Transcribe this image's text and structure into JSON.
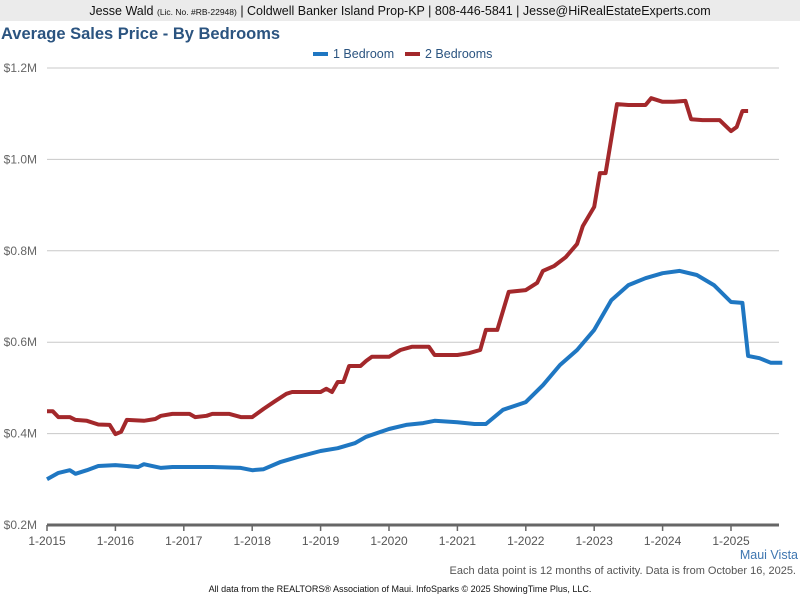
{
  "header": {
    "agent": "Jesse Wald",
    "license": "(Lic. No. #RB-22948)",
    "rest": "| Coldwell Banker Island Prop-KP | 808-446-5841 | Jesse@HiRealEstateExperts.com"
  },
  "region": "Maui Vista",
  "note": "Each data point is 12 months of activity. Data is from October 16, 2025.",
  "footer": "All data from the REALTORS® Association of Maui. InfoSparks © 2025 ShowingTime Plus, LLC.",
  "chart_data": {
    "type": "line",
    "title": "Average Sales Price - By Bedrooms",
    "legend_placement": "top-center",
    "grid": "horizontal",
    "ylim": [
      0.2,
      1.2
    ],
    "yticks": [
      "$0.2M",
      "$0.4M",
      "$0.6M",
      "$0.8M",
      "$1.0M",
      "$1.2M"
    ],
    "ytick_values": [
      0.2,
      0.4,
      0.6,
      0.8,
      1.0,
      1.2
    ],
    "xticks": [
      "1-2015",
      "1-2016",
      "1-2017",
      "1-2018",
      "1-2019",
      "1-2020",
      "1-2021",
      "1-2022",
      "1-2023",
      "1-2024",
      "1-2025"
    ],
    "y_unit": "$M",
    "series": [
      {
        "name": "1 Bedroom",
        "color": "#1f77c2",
        "points": [
          [
            "2015-01",
            0.3
          ],
          [
            "2015-03",
            0.314
          ],
          [
            "2015-05",
            0.32
          ],
          [
            "2015-06",
            0.312
          ],
          [
            "2015-08",
            0.32
          ],
          [
            "2015-10",
            0.329
          ],
          [
            "2016-01",
            0.331
          ],
          [
            "2016-05",
            0.327
          ],
          [
            "2016-06",
            0.333
          ],
          [
            "2016-09",
            0.325
          ],
          [
            "2016-11",
            0.327
          ],
          [
            "2017-06",
            0.327
          ],
          [
            "2017-11",
            0.325
          ],
          [
            "2018-01",
            0.32
          ],
          [
            "2018-03",
            0.322
          ],
          [
            "2018-06",
            0.338
          ],
          [
            "2018-09",
            0.349
          ],
          [
            "2019-01",
            0.362
          ],
          [
            "2019-04",
            0.368
          ],
          [
            "2019-07",
            0.379
          ],
          [
            "2019-09",
            0.393
          ],
          [
            "2020-01",
            0.41
          ],
          [
            "2020-04",
            0.419
          ],
          [
            "2020-07",
            0.423
          ],
          [
            "2020-09",
            0.428
          ],
          [
            "2021-01",
            0.425
          ],
          [
            "2021-04",
            0.421
          ],
          [
            "2021-06",
            0.421
          ],
          [
            "2021-09",
            0.452
          ],
          [
            "2022-01",
            0.469
          ],
          [
            "2022-04",
            0.506
          ],
          [
            "2022-07",
            0.55
          ],
          [
            "2022-10",
            0.583
          ],
          [
            "2023-01",
            0.627
          ],
          [
            "2023-04",
            0.692
          ],
          [
            "2023-07",
            0.725
          ],
          [
            "2023-10",
            0.74
          ],
          [
            "2024-01",
            0.751
          ],
          [
            "2024-04",
            0.756
          ],
          [
            "2024-07",
            0.747
          ],
          [
            "2024-10",
            0.725
          ],
          [
            "2025-01",
            0.688
          ],
          [
            "2025-03",
            0.686
          ],
          [
            "2025-04",
            0.57
          ],
          [
            "2025-06",
            0.565
          ],
          [
            "2025-08",
            0.555
          ],
          [
            "2025-10",
            0.555
          ]
        ]
      },
      {
        "name": "2 Bedrooms",
        "color": "#a3282b",
        "points": [
          [
            "2015-01",
            0.449
          ],
          [
            "2015-02",
            0.449
          ],
          [
            "2015-03",
            0.436
          ],
          [
            "2015-05",
            0.436
          ],
          [
            "2015-06",
            0.43
          ],
          [
            "2015-08",
            0.428
          ],
          [
            "2015-10",
            0.42
          ],
          [
            "2015-12",
            0.419
          ],
          [
            "2016-01",
            0.399
          ],
          [
            "2016-02",
            0.404
          ],
          [
            "2016-03",
            0.43
          ],
          [
            "2016-06",
            0.428
          ],
          [
            "2016-08",
            0.432
          ],
          [
            "2016-09",
            0.439
          ],
          [
            "2016-11",
            0.443
          ],
          [
            "2017-02",
            0.443
          ],
          [
            "2017-03",
            0.436
          ],
          [
            "2017-05",
            0.439
          ],
          [
            "2017-06",
            0.443
          ],
          [
            "2017-09",
            0.443
          ],
          [
            "2017-11",
            0.436
          ],
          [
            "2018-01",
            0.436
          ],
          [
            "2018-03",
            0.454
          ],
          [
            "2018-05",
            0.471
          ],
          [
            "2018-07",
            0.487
          ],
          [
            "2018-08",
            0.491
          ],
          [
            "2018-11",
            0.491
          ],
          [
            "2019-01",
            0.491
          ],
          [
            "2019-02",
            0.498
          ],
          [
            "2019-03",
            0.491
          ],
          [
            "2019-04",
            0.513
          ],
          [
            "2019-05",
            0.513
          ],
          [
            "2019-06",
            0.548
          ],
          [
            "2019-08",
            0.548
          ],
          [
            "2019-09",
            0.559
          ],
          [
            "2019-10",
            0.568
          ],
          [
            "2020-01",
            0.568
          ],
          [
            "2020-03",
            0.583
          ],
          [
            "2020-05",
            0.59
          ],
          [
            "2020-08",
            0.59
          ],
          [
            "2020-09",
            0.572
          ],
          [
            "2021-01",
            0.572
          ],
          [
            "2021-03",
            0.576
          ],
          [
            "2021-05",
            0.583
          ],
          [
            "2021-06",
            0.627
          ],
          [
            "2021-08",
            0.627
          ],
          [
            "2021-10",
            0.71
          ],
          [
            "2022-01",
            0.714
          ],
          [
            "2022-03",
            0.73
          ],
          [
            "2022-04",
            0.756
          ],
          [
            "2022-06",
            0.767
          ],
          [
            "2022-08",
            0.786
          ],
          [
            "2022-10",
            0.815
          ],
          [
            "2022-11",
            0.854
          ],
          [
            "2023-01",
            0.896
          ],
          [
            "2023-02",
            0.97
          ],
          [
            "2023-03",
            0.97
          ],
          [
            "2023-05",
            1.121
          ],
          [
            "2023-07",
            1.119
          ],
          [
            "2023-10",
            1.119
          ],
          [
            "2023-11",
            1.134
          ],
          [
            "2024-01",
            1.126
          ],
          [
            "2024-03",
            1.126
          ],
          [
            "2024-05",
            1.128
          ],
          [
            "2024-06",
            1.088
          ],
          [
            "2024-08",
            1.086
          ],
          [
            "2024-11",
            1.086
          ],
          [
            "2025-01",
            1.062
          ],
          [
            "2025-02",
            1.071
          ],
          [
            "2025-03",
            1.106
          ],
          [
            "2025-04",
            1.106
          ]
        ]
      }
    ]
  }
}
